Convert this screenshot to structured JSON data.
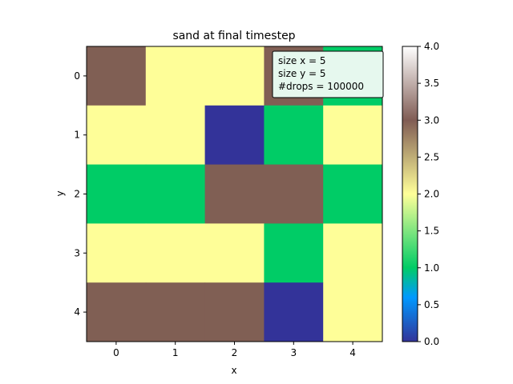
{
  "chart_data": {
    "type": "heatmap",
    "title": "sand at final timestep",
    "xlabel": "x",
    "ylabel": "y",
    "x_ticks": [
      "0",
      "1",
      "2",
      "3",
      "4"
    ],
    "y_ticks": [
      "0",
      "1",
      "2",
      "3",
      "4"
    ],
    "values": [
      [
        3,
        2,
        2,
        3,
        1
      ],
      [
        2,
        2,
        0,
        1,
        2
      ],
      [
        1,
        1,
        3,
        3,
        1
      ],
      [
        2,
        2,
        2,
        1,
        2
      ],
      [
        3,
        3,
        3,
        0,
        2
      ]
    ],
    "colormap": "terrain",
    "vmin": 0,
    "vmax": 4,
    "colorbar_ticks": [
      "0.0",
      "0.5",
      "1.0",
      "1.5",
      "2.0",
      "2.5",
      "3.0",
      "3.5",
      "4.0"
    ],
    "annotation": {
      "lines": [
        "size x = 5",
        "size y = 5",
        "#drops = 100000"
      ],
      "placement": "top-right",
      "background": "#e6f8ee"
    },
    "colors": {
      "value_0": "#333399",
      "value_1": "#00cc66",
      "value_2": "#fefe98",
      "value_3": "#805f54"
    }
  }
}
